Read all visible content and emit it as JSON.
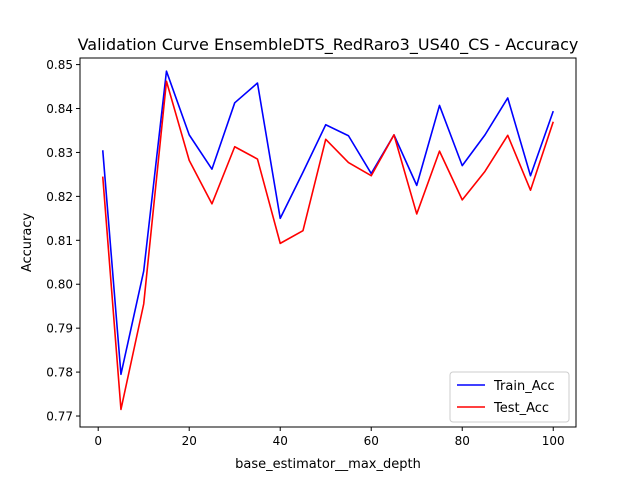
{
  "chart_data": {
    "type": "line",
    "title": "Validation Curve EnsembleDTS_RedRaro3_US40_CS - Accuracy",
    "xlabel": "base_estimator__max_depth",
    "ylabel": "Accuracy",
    "xlim": [
      -4.0,
      105.0
    ],
    "ylim": [
      0.7675,
      0.8515
    ],
    "xticks": [
      0,
      20,
      40,
      60,
      80,
      100
    ],
    "xtick_labels": [
      "0",
      "20",
      "40",
      "60",
      "80",
      "100"
    ],
    "yticks": [
      0.77,
      0.78,
      0.79,
      0.8,
      0.81,
      0.82,
      0.83,
      0.84,
      0.85
    ],
    "ytick_labels": [
      "0.77",
      "0.78",
      "0.79",
      "0.80",
      "0.81",
      "0.82",
      "0.83",
      "0.84",
      "0.85"
    ],
    "grid": false,
    "legend_position": "lower-right",
    "x": [
      1,
      5,
      10,
      15,
      20,
      25,
      30,
      35,
      40,
      45,
      50,
      55,
      60,
      65,
      70,
      75,
      80,
      85,
      90,
      95,
      100
    ],
    "series": [
      {
        "name": "Train_Acc",
        "color": "#0000ff",
        "values": [
          0.8305,
          0.7795,
          0.803,
          0.8485,
          0.834,
          0.8262,
          0.8413,
          0.8458,
          0.815,
          0.8255,
          0.8363,
          0.8338,
          0.8252,
          0.834,
          0.8225,
          0.8407,
          0.827,
          0.834,
          0.8424,
          0.8247,
          0.8394
        ]
      },
      {
        "name": "Test_Acc",
        "color": "#ff0000",
        "values": [
          0.8245,
          0.7715,
          0.7955,
          0.8462,
          0.8282,
          0.8183,
          0.8313,
          0.8285,
          0.8093,
          0.8122,
          0.833,
          0.8277,
          0.8247,
          0.834,
          0.816,
          0.8303,
          0.8192,
          0.8257,
          0.8339,
          0.8214,
          0.837
        ]
      }
    ]
  }
}
